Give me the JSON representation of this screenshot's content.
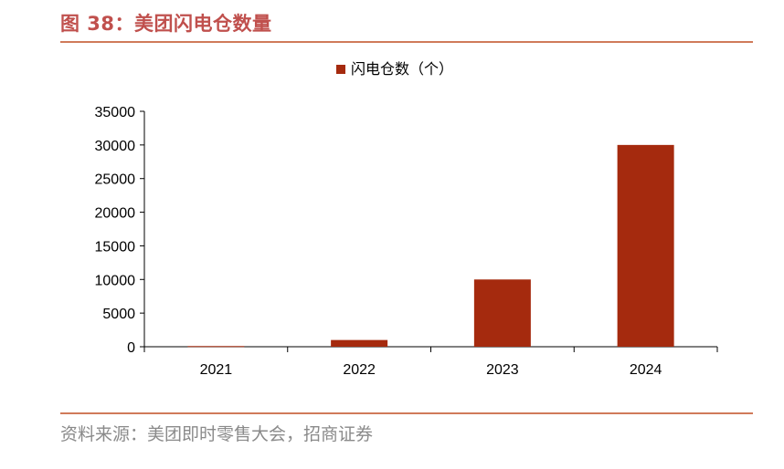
{
  "figure": {
    "title": "图 38：美团闪电仓数量",
    "source": "资料来源：美团即时零售大会，招商证券"
  },
  "colors": {
    "title": "#c0504d",
    "bar": "#a52a0e",
    "rule": "#d07a5a",
    "axis": "#000000",
    "source": "#8a8a8a"
  },
  "chart_data": {
    "type": "bar",
    "categories": [
      "2021",
      "2022",
      "2023",
      "2024"
    ],
    "series": [
      {
        "name": "闪电仓数（个）",
        "values": [
          100,
          1000,
          10000,
          30000
        ]
      }
    ],
    "ylim": [
      0,
      35000
    ],
    "yticks": [
      "0",
      "5000",
      "10000",
      "15000",
      "20000",
      "25000",
      "30000",
      "35000"
    ],
    "grid": false,
    "legend": "top-center"
  }
}
